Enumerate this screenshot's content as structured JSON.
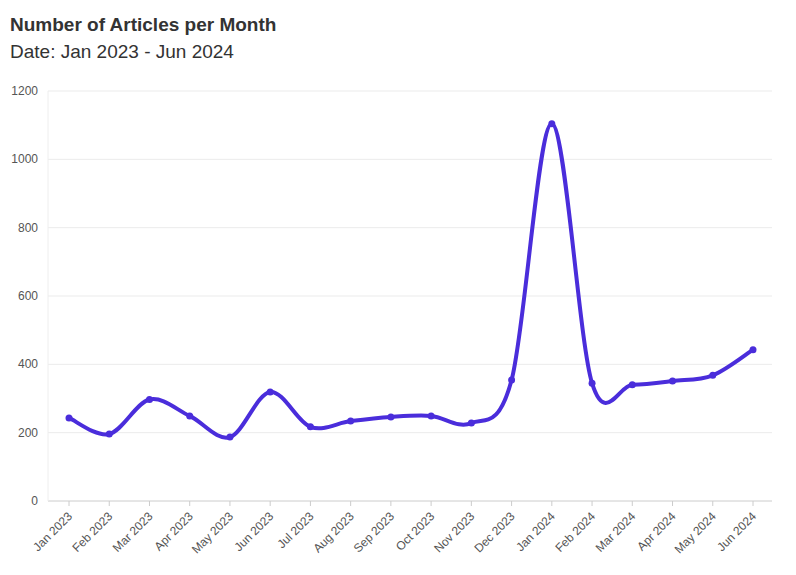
{
  "chart_data": {
    "type": "line",
    "title": "Number of Articles per Month",
    "subtitle": "Date: Jan 2023 - Jun 2024",
    "categories": [
      "Jan 2023",
      "Feb 2023",
      "Mar 2023",
      "Apr 2023",
      "May 2023",
      "Jun 2023",
      "Jul 2023",
      "Aug 2023",
      "Sep 2023",
      "Oct 2023",
      "Nov 2023",
      "Dec 2023",
      "Jan 2024",
      "Feb 2024",
      "Mar 2024",
      "Apr 2024",
      "May 2024",
      "Jun 2024"
    ],
    "values": [
      243,
      196,
      297,
      249,
      187,
      319,
      217,
      234,
      246,
      249,
      228,
      354,
      1104,
      345,
      340,
      351,
      368,
      443
    ],
    "color": "#4a2ddb",
    "marker": "circle",
    "ylim": [
      0,
      1200
    ],
    "yticks": [
      0,
      200,
      400,
      600,
      800,
      1000,
      1200
    ],
    "grid": true
  }
}
